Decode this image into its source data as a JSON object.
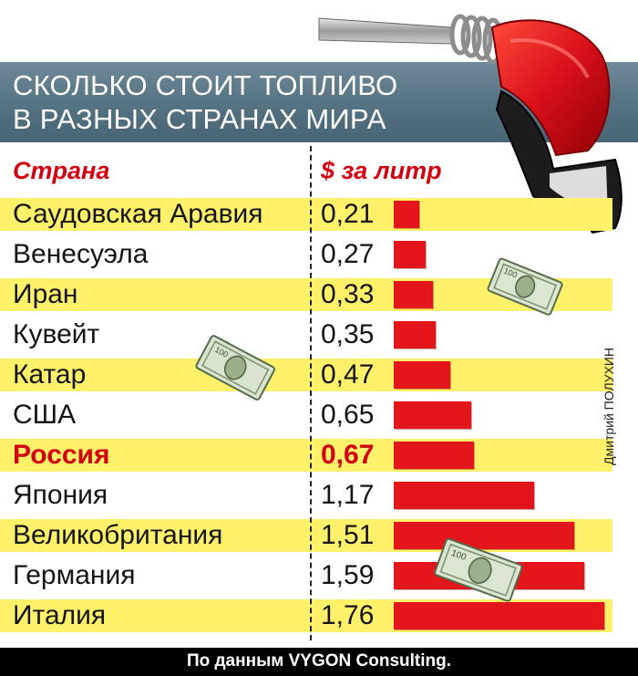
{
  "title": {
    "line1": "СКОЛЬКО СТОИТ ТОПЛИВО",
    "line2": "В РАЗНЫХ СТРАНАХ МИРА"
  },
  "header": {
    "country": "Страна",
    "price": "$ за литр"
  },
  "credit": "Дмитрий ПОЛУХИН",
  "footer": "По данным VYGON Consulting.",
  "colors": {
    "bar": "#e3161b",
    "highlight": "#d2000f",
    "band": "#fff26a",
    "banner": "#5a7585"
  },
  "icons": [
    "fuel-nozzle-icon",
    "dollar-bill-icon"
  ],
  "chart_data": {
    "type": "bar",
    "orientation": "horizontal",
    "categories": [
      "Саудовская Аравия",
      "Венесуэла",
      "Иран",
      "Кувейт",
      "Катар",
      "США",
      "Россия",
      "Япония",
      "Великобритания",
      "Германия",
      "Италия"
    ],
    "value_labels": [
      "0,21",
      "0,27",
      "0,33",
      "0,35",
      "0,47",
      "0,65",
      "0,67",
      "1,17",
      "1,51",
      "1,59",
      "1,76"
    ],
    "values": [
      0.21,
      0.27,
      0.33,
      0.35,
      0.47,
      0.65,
      0.67,
      1.17,
      1.51,
      1.59,
      1.76
    ],
    "highlight": "Россия",
    "xlim": [
      0,
      1.76
    ],
    "grid": false,
    "legend": "none"
  }
}
